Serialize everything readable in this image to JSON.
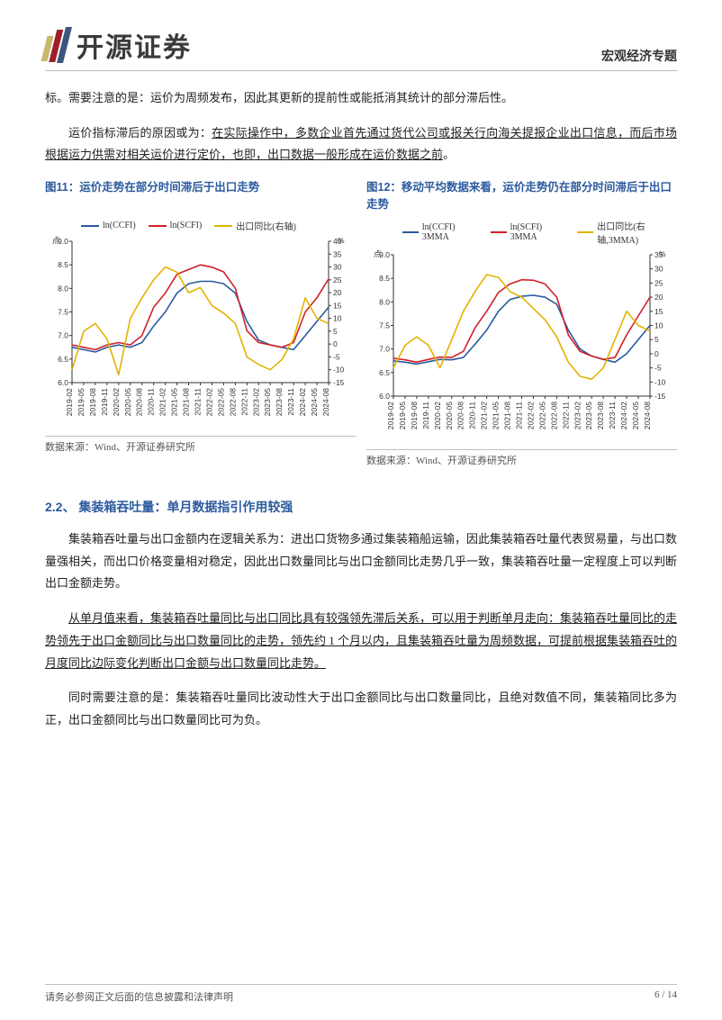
{
  "header": {
    "logo_text": "开源证券",
    "doc_title": "宏观经济专题"
  },
  "paragraphs": {
    "p1": "标。需要注意的是：运价为周频发布，因此其更新的提前性或能抵消其统计的部分滞后性。",
    "p2_a": "运价指标滞后的原因或为：",
    "p2_b": "在实际操作中，多数企业首先通过货代公司或报关行向海关提报企业出口信息，而后市场根据运力供需对相关运价进行定价，也即，出口数据一般形成在运价数据之前",
    "p2_c": "。"
  },
  "figure11": {
    "title": "图11：运价走势在部分时间滞后于出口走势",
    "source": "数据来源：Wind、开源证券研究所",
    "legend": [
      {
        "label": "ln(CCFI)",
        "color": "#2b5a9e"
      },
      {
        "label": "ln(SCFI)",
        "color": "#d1202a"
      },
      {
        "label": "出口同比(右轴)",
        "color": "#e3b300"
      }
    ],
    "left_axis": {
      "label": "点",
      "min": 6.0,
      "max": 9.0,
      "step": 0.5
    },
    "right_axis": {
      "label": "%",
      "min": -15,
      "max": 40,
      "step": 5
    },
    "x_labels": [
      "2019-02",
      "2019-05",
      "2019-08",
      "2019-11",
      "2020-02",
      "2020-05",
      "2020-08",
      "2020-11",
      "2021-02",
      "2021-05",
      "2021-08",
      "2021-11",
      "2022-02",
      "2022-05",
      "2022-08",
      "2022-11",
      "2023-02",
      "2023-05",
      "2023-08",
      "2023-11",
      "2024-02",
      "2024-05",
      "2024-08"
    ],
    "series": {
      "ccfi": [
        6.75,
        6.7,
        6.65,
        6.75,
        6.8,
        6.75,
        6.85,
        7.2,
        7.5,
        7.9,
        8.1,
        8.15,
        8.15,
        8.1,
        7.9,
        7.3,
        6.9,
        6.8,
        6.75,
        6.7,
        7.0,
        7.3,
        7.6
      ],
      "scfi": [
        6.8,
        6.75,
        6.7,
        6.8,
        6.85,
        6.8,
        7.0,
        7.6,
        7.9,
        8.3,
        8.4,
        8.5,
        8.45,
        8.35,
        8.0,
        7.1,
        6.85,
        6.8,
        6.75,
        6.85,
        7.5,
        7.8,
        8.2
      ],
      "export": [
        -10,
        5,
        8,
        2,
        -12,
        10,
        18,
        25,
        30,
        28,
        20,
        22,
        15,
        12,
        8,
        -5,
        -8,
        -10,
        -6,
        2,
        18,
        10,
        8
      ]
    },
    "colors": {
      "grid": "#ffffff",
      "bg": "#ffffff",
      "axis": "#333333"
    },
    "line_width": 1.6
  },
  "figure12": {
    "title": "图12：移动平均数据来看，运价走势仍在部分时间滞后于出口走势",
    "source": "数据来源：Wind、开源证券研究所",
    "legend": [
      {
        "label": "ln(CCFI) 3MMA",
        "color": "#2b5a9e"
      },
      {
        "label": "ln(SCFI) 3MMA",
        "color": "#d1202a"
      },
      {
        "label": "出口同比(右轴,3MMA)",
        "color": "#e3b300"
      }
    ],
    "left_axis": {
      "label": "点",
      "min": 6.0,
      "max": 9.0,
      "step": 0.5
    },
    "right_axis": {
      "label": "%",
      "min": -15,
      "max": 35,
      "step": 5
    },
    "x_labels": [
      "2019-02",
      "2019-05",
      "2019-08",
      "2019-11",
      "2020-02",
      "2020-05",
      "2020-08",
      "2020-11",
      "2021-02",
      "2021-05",
      "2021-08",
      "2021-11",
      "2022-02",
      "2022-05",
      "2022-08",
      "2022-11",
      "2023-02",
      "2023-05",
      "2023-08",
      "2023-11",
      "2024-02",
      "2024-05",
      "2024-08"
    ],
    "series": {
      "ccfi": [
        6.75,
        6.72,
        6.68,
        6.73,
        6.78,
        6.77,
        6.82,
        7.1,
        7.4,
        7.8,
        8.05,
        8.12,
        8.14,
        8.1,
        7.95,
        7.4,
        7.0,
        6.85,
        6.78,
        6.72,
        6.9,
        7.2,
        7.5
      ],
      "scfi": [
        6.8,
        6.77,
        6.72,
        6.78,
        6.83,
        6.82,
        6.95,
        7.45,
        7.8,
        8.2,
        8.38,
        8.47,
        8.46,
        8.38,
        8.1,
        7.3,
        6.95,
        6.85,
        6.78,
        6.82,
        7.3,
        7.7,
        8.1
      ],
      "export": [
        -5,
        3,
        6,
        3,
        -5,
        5,
        15,
        22,
        28,
        27,
        22,
        20,
        16,
        12,
        6,
        -3,
        -8,
        -9,
        -5,
        5,
        15,
        10,
        8
      ]
    },
    "colors": {
      "grid": "#ffffff",
      "bg": "#ffffff",
      "axis": "#333333"
    },
    "line_width": 1.6
  },
  "section": {
    "heading": "2.2、 集装箱吞吐量：单月数据指引作用较强",
    "p3": "集装箱吞吐量与出口金额内在逻辑关系为：进出口货物多通过集装箱船运输，因此集装箱吞吐量代表贸易量，与出口数量强相关，而出口价格变量相对稳定，因此出口数量同比与出口金额同比走势几乎一致，集装箱吞吐量一定程度上可以判断出口金额走势。",
    "p4": "从单月值来看，集装箱吞吐量同比与出口同比具有较强领先滞后关系，可以用于判断单月走向：集装箱吞吐量同比的走势领先于出口金额同比与出口数量同比的走势，领先约 1 个月以内，且集装箱吞吐量为周频数据，可提前根据集装箱吞吐的月度同比边际变化判断出口金额与出口数量同比走势。",
    "p5": "同时需要注意的是：集装箱吞吐量同比波动性大于出口金额同比与出口数量同比，且绝对数值不同，集装箱同比多为正，出口金额同比与出口数量同比可为负。"
  },
  "footer": {
    "disclaimer": "请务必参阅正文后面的信息披露和法律声明",
    "page": "6 / 14"
  }
}
